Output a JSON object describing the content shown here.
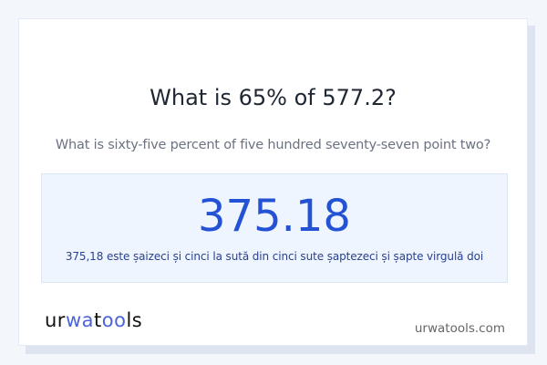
{
  "question": {
    "title": "What is 65% of 577.2?",
    "subtitle": "What is sixty-five percent of five hundred seventy-seven point two?"
  },
  "result": {
    "value": "375.18",
    "words": "375,18 este șaizeci și cinci la sută din cinci sute șaptezeci și șapte virgulă doi"
  },
  "footer": {
    "logo_text": "urwatools",
    "site": "urwatools.com"
  },
  "colors": {
    "accent": "#2352d4",
    "logo_accent": "#4b63dd",
    "background": "#f3f6fb"
  }
}
